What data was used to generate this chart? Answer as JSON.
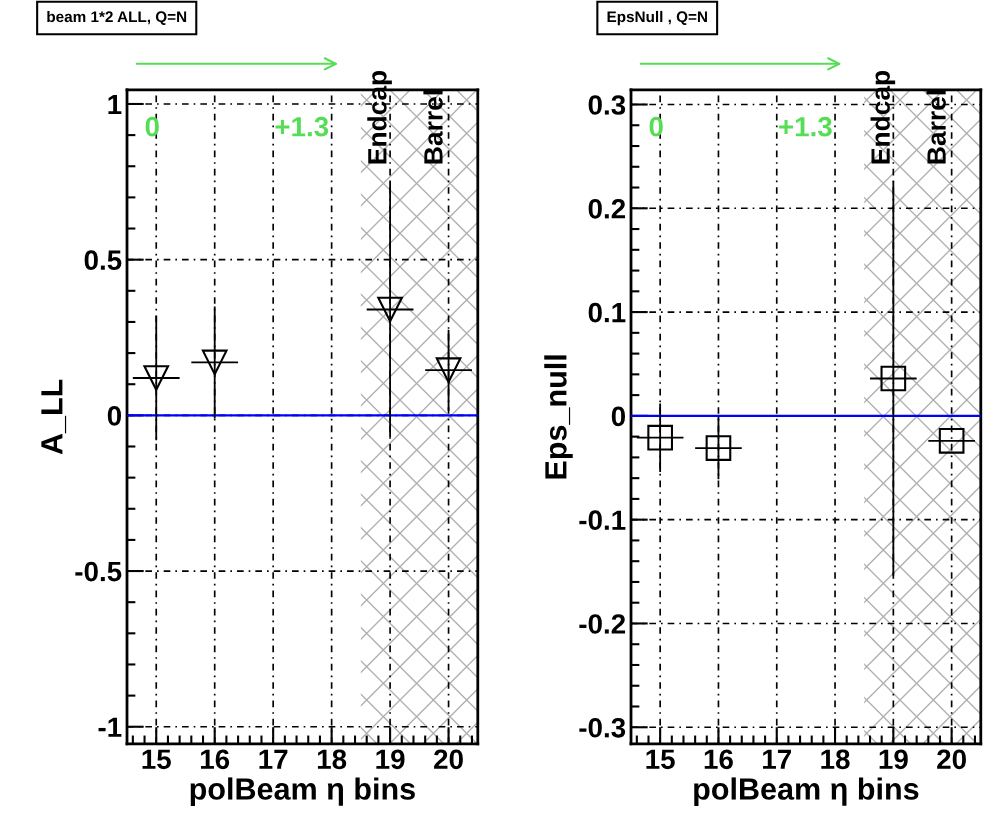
{
  "chart_data": [
    {
      "type": "scatter",
      "title": "beam 1*2 ALL, Q=N",
      "xlabel": "polBeam η bins",
      "ylabel": "A_LL",
      "x": [
        15,
        16,
        19,
        20
      ],
      "values": [
        0.12,
        0.17,
        0.34,
        0.145
      ],
      "errors": [
        0.2,
        0.18,
        0.41,
        0.13
      ],
      "xerrors": [
        0.4,
        0.4,
        0.4,
        0.4
      ],
      "color": "#000000",
      "marker": "triangle",
      "xlim": [
        14.5,
        20.5
      ],
      "ylim": [
        -1.055,
        1.045
      ],
      "xticks": [
        15,
        16,
        17,
        18,
        19,
        20
      ],
      "yticks": [
        -1,
        -0.5,
        0,
        0.5,
        1
      ],
      "grid": true,
      "ref_lines": [
        {
          "axis": "y",
          "value": 0,
          "color": "#0000ff"
        }
      ],
      "bands": [
        {
          "axis": "x",
          "from": 18.5,
          "to": 20.5,
          "color": "#b0b0b0"
        }
      ],
      "annotations": [
        "0",
        "+1.3",
        "Endcap",
        "Barrel"
      ]
    },
    {
      "type": "scatter",
      "title": "EpsNull , Q=N",
      "xlabel": "polBeam η bins",
      "ylabel": "Eps_null",
      "x": [
        15,
        16,
        19,
        20
      ],
      "values": [
        -0.021,
        -0.031,
        0.036,
        -0.024
      ],
      "errors": [
        0.033,
        0.03,
        0.19,
        null
      ],
      "xerrors": [
        0.4,
        0.4,
        0.4,
        0.4
      ],
      "color": "#000000",
      "marker": "square",
      "xlim": [
        14.5,
        20.5
      ],
      "ylim": [
        -0.316,
        0.314
      ],
      "xticks": [
        15,
        16,
        17,
        18,
        19,
        20
      ],
      "yticks": [
        -0.3,
        -0.2,
        -0.1,
        0,
        0.1,
        0.2,
        0.3
      ],
      "grid": true,
      "ref_lines": [
        {
          "axis": "y",
          "value": 0,
          "color": "#0000ff"
        }
      ],
      "bands": [
        {
          "axis": "x",
          "from": 18.5,
          "to": 20.5,
          "color": "#b0b0b0"
        }
      ],
      "annotations": [
        "0",
        "+1.3",
        "Endcap",
        "Barrel"
      ]
    }
  ]
}
